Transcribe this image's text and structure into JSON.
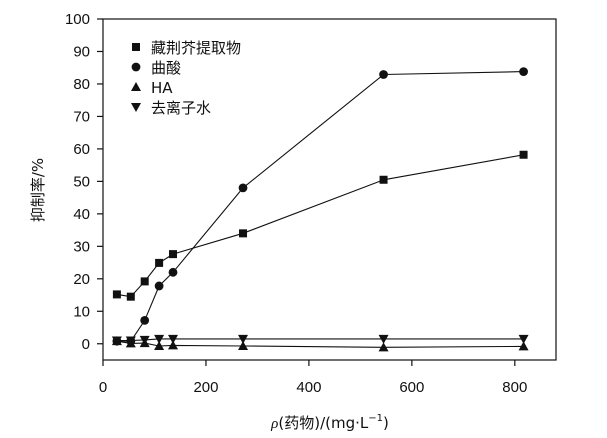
{
  "chart_data": {
    "type": "line",
    "xlabel": "ρ(药物)/(mg·L⁻¹)",
    "xlabel_parts": {
      "symbol": "ρ",
      "rest": "(药物)/(mg·L",
      "exponent": "−1",
      "close": ")"
    },
    "ylabel": "抑制率/%",
    "xlim": [
      0,
      880
    ],
    "ylim": [
      -5,
      100
    ],
    "xticks": [
      0,
      200,
      400,
      600,
      800
    ],
    "yticks": [
      0,
      10,
      20,
      30,
      40,
      50,
      60,
      70,
      80,
      90,
      100
    ],
    "grid": false,
    "legend_position": "top-left",
    "series": [
      {
        "name": "藏荆芥提取物",
        "marker": "square",
        "x": [
          27,
          54,
          81,
          109,
          136,
          272,
          545,
          817
        ],
        "y": [
          15.2,
          14.5,
          19.2,
          24.9,
          27.6,
          34.0,
          50.5,
          58.2
        ]
      },
      {
        "name": "曲酸",
        "marker": "circle",
        "x": [
          27,
          54,
          81,
          109,
          136,
          272,
          545,
          817
        ],
        "y": [
          0.8,
          0.8,
          7.2,
          17.8,
          22.0,
          48.0,
          82.9,
          83.8
        ]
      },
      {
        "name": "HA",
        "marker": "triangle-up",
        "x": [
          27,
          54,
          81,
          109,
          136,
          272,
          545,
          817
        ],
        "y": [
          0.8,
          0.1,
          0.2,
          -0.7,
          -0.5,
          -0.7,
          -1.1,
          -0.8
        ]
      },
      {
        "name": "去离子水",
        "marker": "triangle-down",
        "x": [
          27,
          54,
          81,
          109,
          136,
          272,
          545,
          817
        ],
        "y": [
          1.0,
          1.0,
          1.2,
          1.5,
          1.5,
          1.5,
          1.5,
          1.5
        ]
      }
    ]
  },
  "colors": {
    "ink": "#111111",
    "background": "#ffffff"
  }
}
